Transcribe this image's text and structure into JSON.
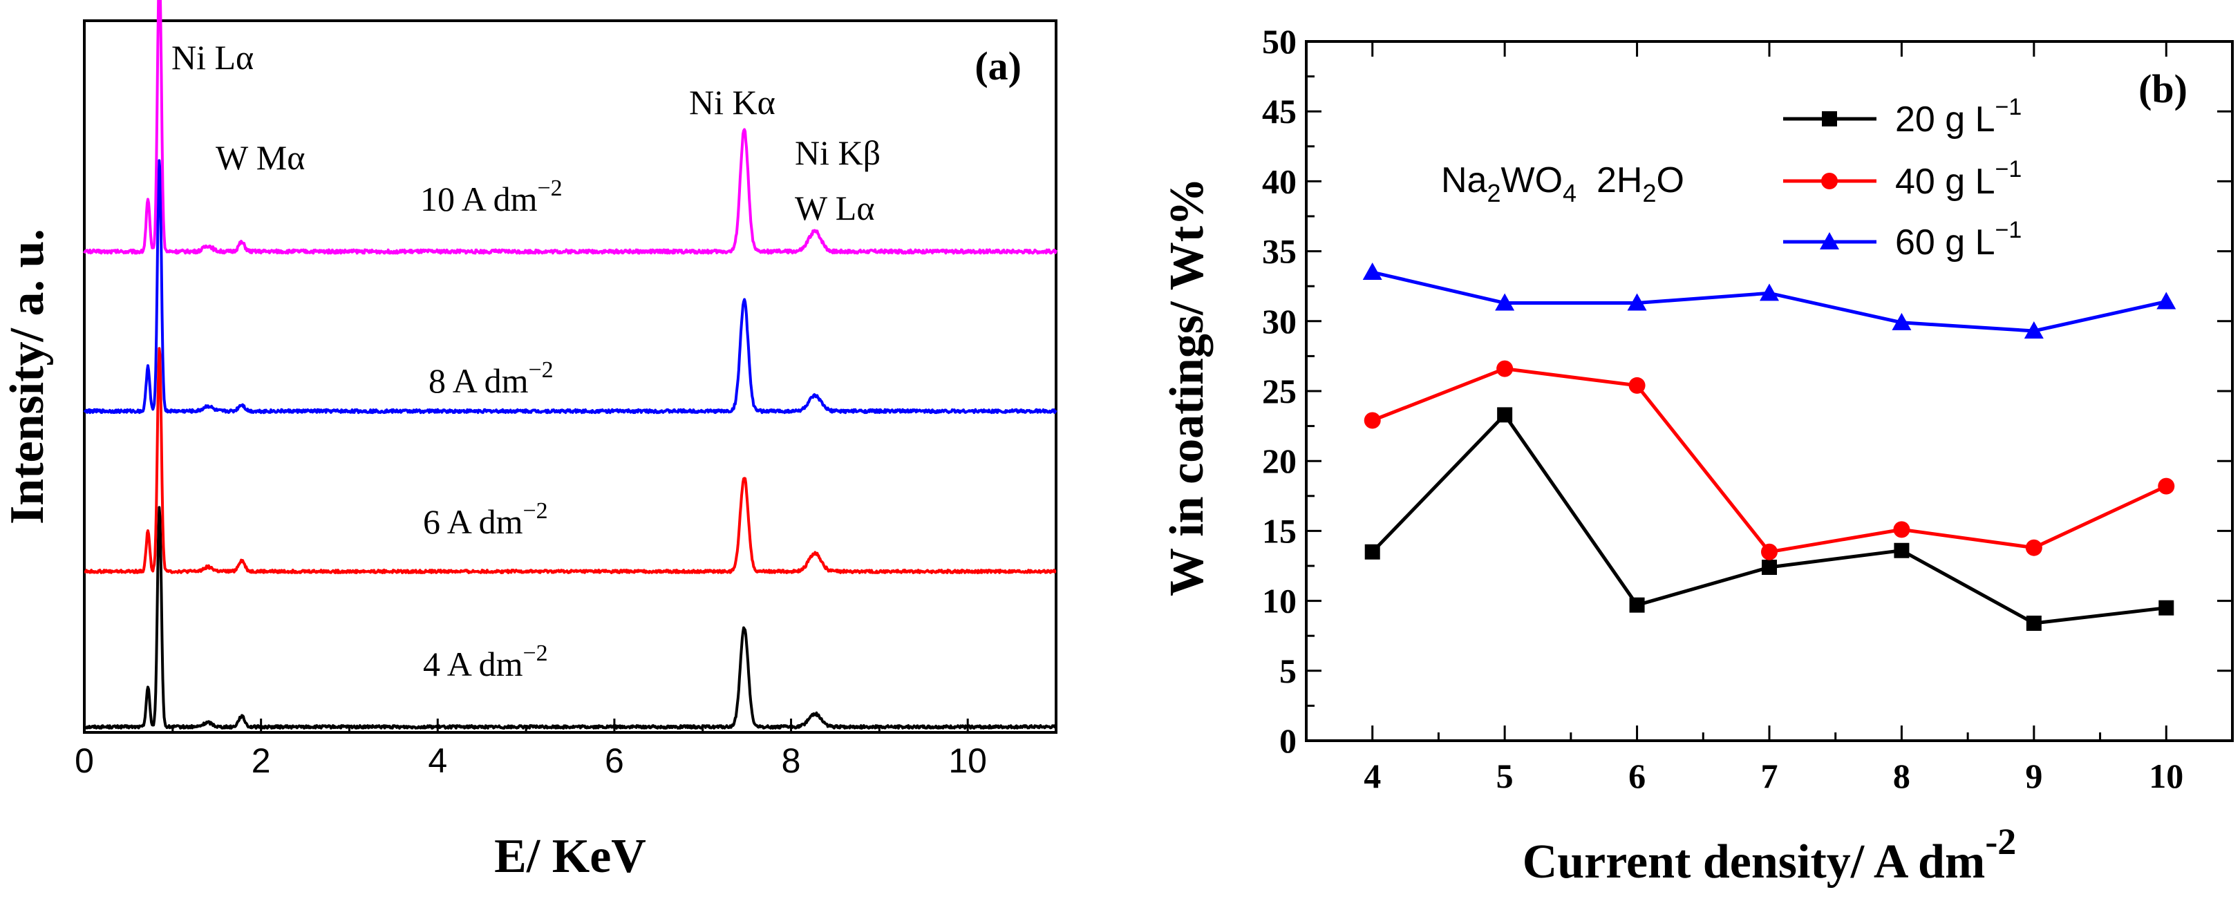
{
  "chart_data": [
    {
      "type": "line",
      "panel": "(a)",
      "xlabel": "E/ KeV",
      "ylabel": "Intensity/ a. u.",
      "xlim": [
        0,
        11
      ],
      "xticks": [
        "0",
        "2",
        "4",
        "6",
        "8",
        "10"
      ],
      "y_ticks_shown": false,
      "peaks": [
        {
          "label": "Ni Lα",
          "e": 0.85,
          "h": 1.0
        },
        {
          "label": "W Mα",
          "e": 1.78,
          "h": 0.22
        },
        {
          "label": "Ni Kα",
          "e": 7.47,
          "h": 0.44
        },
        {
          "label": "Ni Kβ / W Lα",
          "e": 8.27,
          "h": 0.06
        }
      ],
      "annotations": [
        "Ni Lα",
        "W Mα",
        "Ni Kα",
        "Ni Kβ",
        "W Lα"
      ],
      "series": [
        {
          "name": "4 A dm",
          "superscript": "−2",
          "color": "#000000",
          "scale": [
            1.0,
            0.34,
            0.45,
            0.06
          ]
        },
        {
          "name": "6 A dm",
          "superscript": "−2",
          "color": "#ff0000",
          "scale": [
            1.0,
            0.34,
            0.42,
            0.08
          ]
        },
        {
          "name": "8 A dm",
          "superscript": "−2",
          "color": "#0000ff",
          "scale": [
            1.0,
            0.18,
            0.44,
            0.06
          ]
        },
        {
          "name": "10 A dm",
          "superscript": "−2",
          "color": "#ff00ff",
          "scale": [
            1.0,
            0.22,
            0.42,
            0.07
          ]
        }
      ]
    },
    {
      "type": "line",
      "panel": "(b)",
      "xlabel": "Current density/ A dm",
      "xlabel_sup": "-2",
      "ylabel": "W in coatings/ Wt%",
      "xlim": [
        3.5,
        10.5
      ],
      "ylim": [
        0,
        50
      ],
      "xticks": [
        "4",
        "5",
        "6",
        "7",
        "8",
        "9",
        "10"
      ],
      "yticks": [
        "0",
        "5",
        "10",
        "15",
        "20",
        "25",
        "30",
        "35",
        "40",
        "45",
        "50"
      ],
      "x": [
        4,
        5,
        6,
        7,
        8,
        9,
        10
      ],
      "series": [
        {
          "name": "20 g L",
          "superscript": "−1",
          "color": "#000000",
          "marker": "square",
          "values": [
            13.5,
            23.3,
            9.7,
            12.4,
            13.6,
            8.4,
            9.5
          ]
        },
        {
          "name": "40 g L",
          "superscript": "−1",
          "color": "#ff0000",
          "marker": "circle",
          "values": [
            22.9,
            26.6,
            25.4,
            13.5,
            15.1,
            13.8,
            18.2
          ]
        },
        {
          "name": "60 g L",
          "superscript": "−1",
          "color": "#0000ff",
          "marker": "triangle",
          "values": [
            33.5,
            31.3,
            31.3,
            32.0,
            29.9,
            29.3,
            31.4
          ]
        }
      ],
      "annotation": {
        "t1": "Na",
        "s1": "2",
        "t2": "WO",
        "s2": "4",
        "t3": "  2H",
        "s3": "2",
        "t4": "O"
      },
      "legend_position": "top-center"
    }
  ]
}
